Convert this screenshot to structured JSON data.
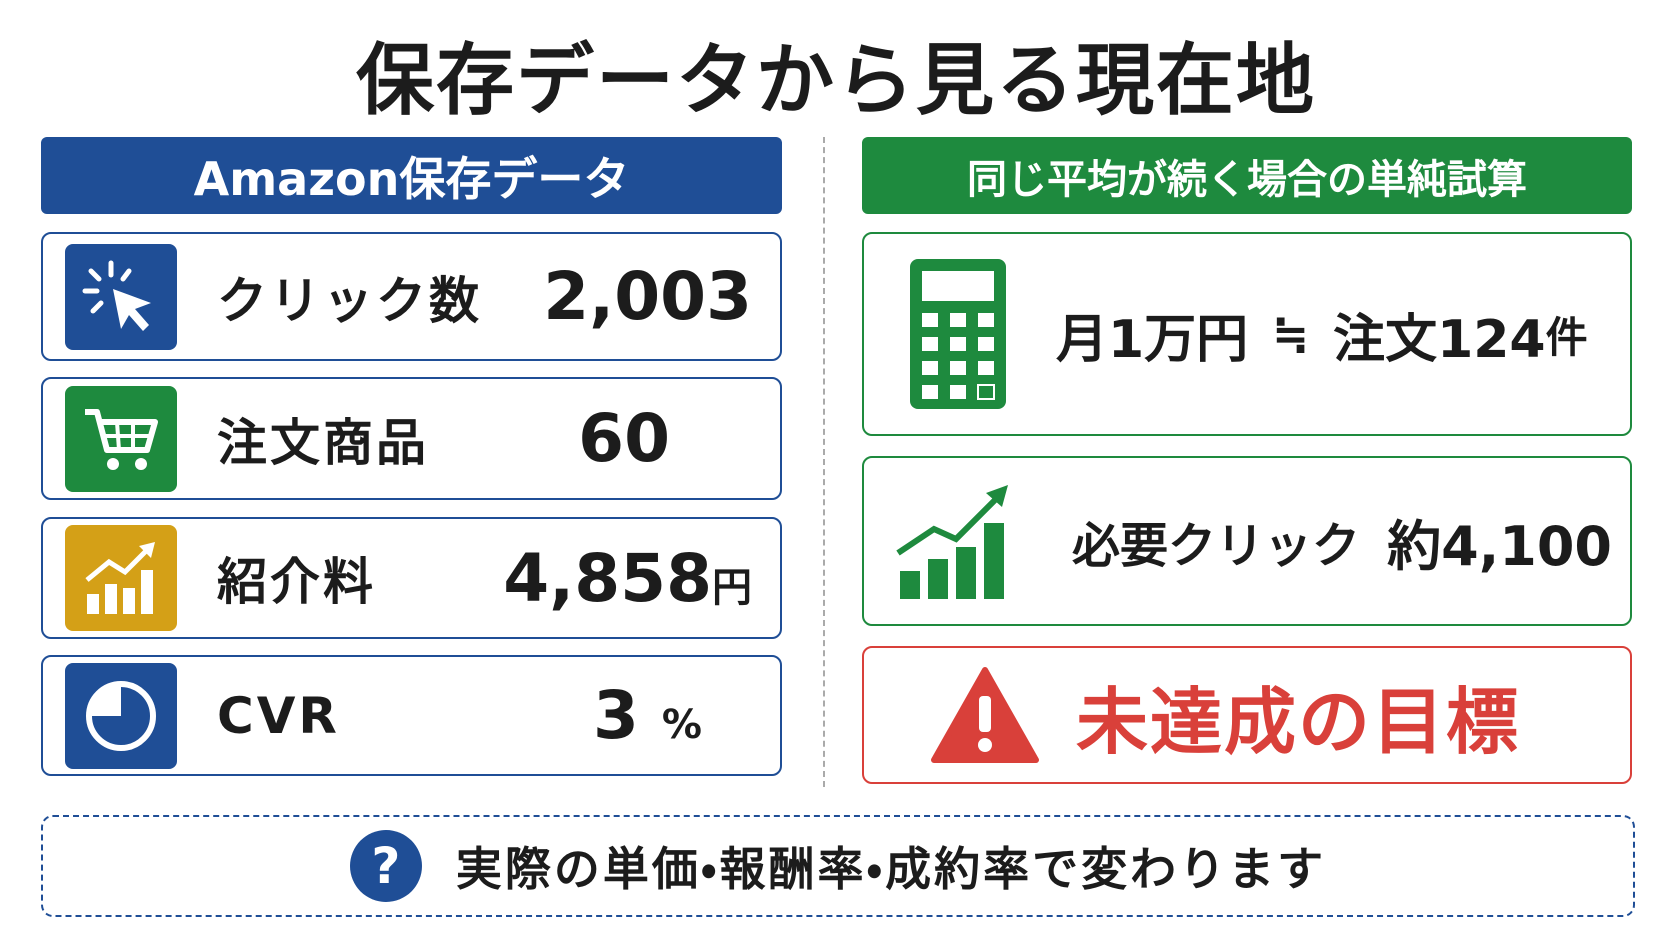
{
  "title": "保存データから見る現在地",
  "left": {
    "header": "Amazon保存データ",
    "rows": [
      {
        "label": "クリック数",
        "value": "2,003"
      },
      {
        "label": "注文商品",
        "value": "60"
      },
      {
        "label": "紹介料",
        "value": "4,858",
        "unit": "円"
      },
      {
        "label": "CVR",
        "value": "3",
        "unit": "%"
      }
    ]
  },
  "right": {
    "header": "同じ平均が続く場合の単純試算",
    "estimate": {
      "income": "月1万円",
      "approx": "≒",
      "orders": "注文124",
      "orders_unit": "件"
    },
    "clicks": {
      "label": "必要クリック",
      "value": "約4,100"
    },
    "warning": "未達成の目標"
  },
  "footer": {
    "icon": "?",
    "note": "実際の単価・報酬率・成約率で変わります"
  }
}
